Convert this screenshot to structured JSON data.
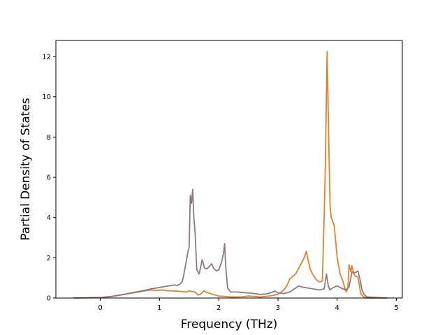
{
  "chart_data": {
    "type": "line",
    "xlabel": "Frequency (THz)",
    "ylabel": "Partial Density of States",
    "xlim": [
      -0.75,
      5.1
    ],
    "ylim": [
      0,
      12.8
    ],
    "xticks": [
      0,
      1,
      2,
      3,
      4,
      5
    ],
    "yticks": [
      0,
      2,
      4,
      6,
      8,
      10,
      12
    ],
    "grid": false,
    "series": [
      {
        "color": "#e6802a",
        "x": [
          -0.45,
          0.0,
          0.2,
          0.4,
          0.6,
          0.75,
          0.85,
          0.95,
          1.05,
          1.15,
          1.25,
          1.35,
          1.45,
          1.5,
          1.55,
          1.6,
          1.65,
          1.7,
          1.75,
          1.8,
          1.9,
          2.0,
          2.1,
          2.2,
          2.3,
          2.4,
          2.5,
          2.6,
          2.7,
          2.8,
          2.9,
          3.0,
          3.1,
          3.15,
          3.2,
          3.3,
          3.4,
          3.45,
          3.48,
          3.5,
          3.55,
          3.6,
          3.65,
          3.7,
          3.75,
          3.78,
          3.8,
          3.83,
          3.845,
          3.86,
          3.88,
          3.9,
          3.95,
          4.0,
          4.05,
          4.1,
          4.15,
          4.18,
          4.2,
          4.23,
          4.25,
          4.28,
          4.3,
          4.35,
          4.4,
          4.45,
          4.5,
          4.85
        ],
        "y": [
          0,
          0.02,
          0.08,
          0.18,
          0.28,
          0.35,
          0.4,
          0.38,
          0.4,
          0.36,
          0.35,
          0.33,
          0.3,
          0.35,
          0.32,
          0.3,
          0.15,
          0.2,
          0.36,
          0.28,
          0.18,
          0.1,
          0.08,
          0.05,
          0.05,
          0.06,
          0.1,
          0.08,
          0.05,
          0.08,
          0.12,
          0.18,
          0.4,
          0.6,
          0.95,
          1.2,
          1.75,
          2.05,
          2.32,
          2.0,
          1.4,
          1.1,
          0.9,
          0.8,
          0.85,
          4.0,
          6.5,
          12.25,
          10.0,
          7.5,
          4.6,
          4.0,
          3.6,
          2.0,
          1.2,
          0.8,
          0.3,
          0.5,
          1.65,
          1.3,
          1.6,
          1.2,
          1.1,
          1.05,
          0.2,
          0.05,
          0,
          0
        ]
      },
      {
        "color": "#8c7a80",
        "x": [
          -0.45,
          0.0,
          0.2,
          0.4,
          0.6,
          0.75,
          0.85,
          0.95,
          1.05,
          1.15,
          1.25,
          1.3,
          1.35,
          1.38,
          1.4,
          1.45,
          1.48,
          1.5,
          1.52,
          1.54,
          1.56,
          1.58,
          1.6,
          1.63,
          1.67,
          1.72,
          1.76,
          1.8,
          1.85,
          1.88,
          1.92,
          1.96,
          2.0,
          2.05,
          2.08,
          2.1,
          2.12,
          2.15,
          2.2,
          2.3,
          2.4,
          2.5,
          2.6,
          2.7,
          2.8,
          2.9,
          2.95,
          3.0,
          3.1,
          3.2,
          3.3,
          3.35,
          3.4,
          3.5,
          3.6,
          3.7,
          3.78,
          3.82,
          3.85,
          3.88,
          3.92,
          4.0,
          4.1,
          4.15,
          4.2,
          4.25,
          4.3,
          4.35,
          4.38,
          4.42,
          4.45,
          4.5,
          4.85
        ],
        "y": [
          0,
          0.02,
          0.08,
          0.18,
          0.3,
          0.38,
          0.45,
          0.5,
          0.55,
          0.6,
          0.65,
          0.62,
          0.7,
          0.8,
          1.0,
          1.8,
          2.3,
          2.5,
          5.1,
          4.7,
          5.4,
          4.0,
          3.3,
          1.4,
          1.2,
          1.9,
          1.5,
          1.45,
          1.6,
          1.7,
          1.45,
          1.35,
          1.4,
          1.8,
          2.2,
          2.7,
          1.5,
          0.5,
          0.3,
          0.3,
          0.28,
          0.25,
          0.22,
          0.18,
          0.2,
          0.28,
          0.35,
          0.25,
          0.22,
          0.3,
          0.5,
          0.6,
          0.55,
          0.5,
          0.45,
          0.4,
          0.45,
          1.2,
          0.6,
          0.4,
          0.5,
          0.6,
          0.45,
          0.4,
          0.55,
          1.3,
          1.25,
          1.35,
          1.0,
          0.4,
          0.2,
          0.05,
          0
        ]
      }
    ]
  }
}
